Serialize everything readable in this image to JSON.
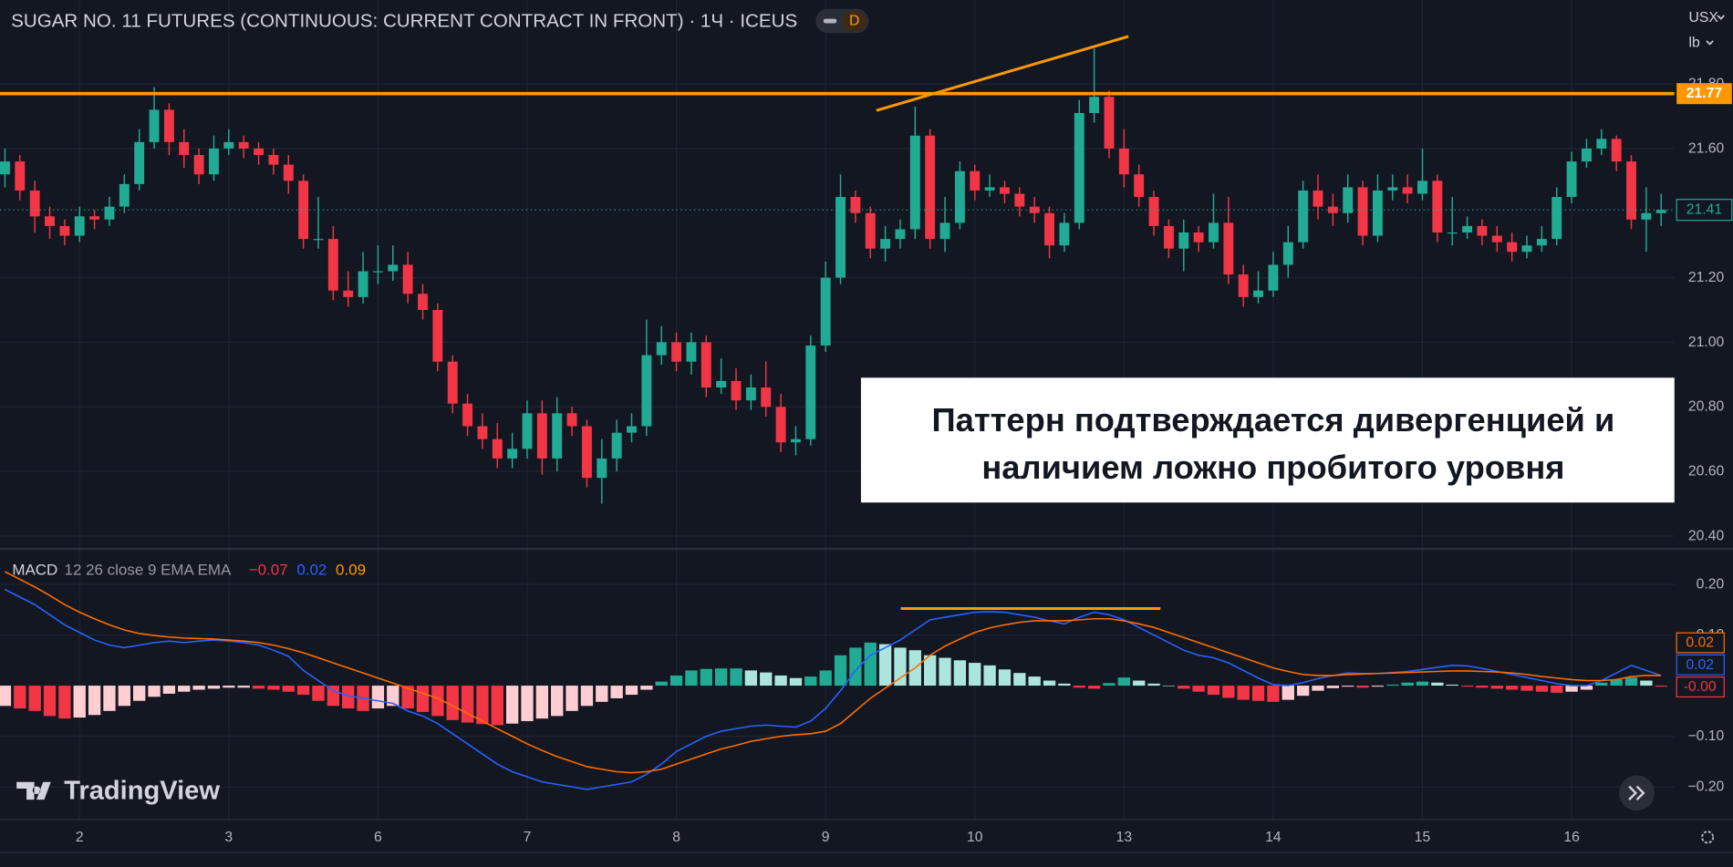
{
  "ui": {
    "currency": "USX",
    "unit": "lb",
    "badge": "D",
    "logo": "TradingView"
  },
  "chart_data": [
    {
      "type": "candlestick",
      "title": "SUGAR NO. 11 FUTURES (CONTINUOUS: CURRENT CONTRACT IN FRONT) · 1Ч · ICEUS",
      "categories": [
        null,
        null,
        null,
        null,
        null,
        "2",
        null,
        null,
        null,
        null,
        null,
        null,
        null,
        null,
        null,
        "3",
        null,
        null,
        null,
        null,
        null,
        null,
        null,
        null,
        null,
        "6",
        null,
        null,
        null,
        null,
        null,
        null,
        null,
        null,
        null,
        "7",
        null,
        null,
        null,
        null,
        null,
        null,
        null,
        null,
        null,
        "8",
        null,
        null,
        null,
        null,
        null,
        null,
        null,
        null,
        null,
        "9",
        null,
        null,
        null,
        null,
        null,
        null,
        null,
        null,
        null,
        "10",
        null,
        null,
        null,
        null,
        null,
        null,
        null,
        null,
        null,
        "13",
        null,
        null,
        null,
        null,
        null,
        null,
        null,
        null,
        null,
        "14",
        null,
        null,
        null,
        null,
        null,
        null,
        null,
        null,
        null,
        "15",
        null,
        null,
        null,
        null,
        null,
        null,
        null,
        null,
        null,
        "16",
        null,
        null,
        null,
        null,
        null,
        null
      ],
      "open": [
        21.52,
        21.56,
        21.47,
        21.39,
        21.36,
        21.33,
        21.39,
        21.38,
        21.42,
        21.49,
        21.62,
        21.72,
        21.62,
        21.58,
        21.52,
        21.6,
        21.62,
        21.6,
        21.58,
        21.55,
        21.5,
        21.32,
        21.32,
        21.16,
        21.14,
        21.22,
        21.22,
        21.24,
        21.15,
        21.1,
        20.94,
        20.81,
        20.74,
        20.7,
        20.64,
        20.67,
        20.78,
        20.64,
        20.78,
        20.74,
        20.58,
        20.64,
        20.72,
        20.74,
        20.96,
        21.0,
        20.94,
        21.0,
        20.86,
        20.88,
        20.82,
        20.86,
        20.8,
        20.69,
        20.7,
        20.99,
        21.2,
        21.45,
        21.4,
        21.29,
        21.32,
        21.35,
        21.64,
        21.32,
        21.37,
        21.53,
        21.47,
        21.48,
        21.46,
        21.42,
        21.4,
        21.3,
        21.37,
        21.71,
        21.76,
        21.6,
        21.52,
        21.45,
        21.36,
        21.29,
        21.34,
        21.31,
        21.37,
        21.21,
        21.14,
        21.16,
        21.24,
        21.31,
        21.47,
        21.42,
        21.4,
        21.48,
        21.33,
        21.47,
        21.48,
        21.46,
        21.5,
        21.34,
        21.34,
        21.36,
        21.33,
        21.31,
        21.28,
        21.3,
        21.32,
        21.45,
        21.56,
        21.6,
        21.63,
        21.56,
        21.38,
        21.4
      ],
      "high": [
        21.6,
        21.58,
        21.5,
        21.42,
        21.38,
        21.42,
        21.41,
        21.45,
        21.52,
        21.66,
        21.79,
        21.74,
        21.66,
        21.6,
        21.64,
        21.66,
        21.64,
        21.62,
        21.6,
        21.58,
        21.52,
        21.45,
        21.36,
        21.22,
        21.28,
        21.3,
        21.3,
        21.28,
        21.18,
        21.12,
        20.96,
        20.84,
        20.78,
        20.75,
        20.72,
        20.82,
        20.82,
        20.83,
        20.8,
        20.76,
        20.7,
        20.76,
        20.78,
        21.07,
        21.05,
        21.03,
        21.03,
        21.02,
        20.95,
        20.92,
        20.9,
        20.94,
        20.84,
        20.74,
        21.02,
        21.25,
        21.52,
        21.47,
        21.42,
        21.36,
        21.38,
        21.73,
        21.66,
        21.45,
        21.56,
        21.55,
        21.52,
        21.5,
        21.48,
        21.45,
        21.42,
        21.4,
        21.75,
        21.91,
        21.78,
        21.66,
        21.55,
        21.47,
        21.38,
        21.38,
        21.36,
        21.46,
        21.45,
        21.24,
        21.22,
        21.28,
        21.36,
        21.5,
        21.52,
        21.46,
        21.52,
        21.5,
        21.52,
        21.52,
        21.52,
        21.6,
        21.52,
        21.45,
        21.39,
        21.38,
        21.36,
        21.34,
        21.33,
        21.36,
        21.48,
        21.59,
        21.63,
        21.66,
        21.64,
        21.58,
        21.48,
        21.46
      ],
      "low": [
        21.48,
        21.44,
        21.34,
        21.32,
        21.3,
        21.31,
        21.35,
        21.36,
        21.4,
        21.47,
        21.6,
        21.58,
        21.54,
        21.49,
        21.5,
        21.58,
        21.57,
        21.55,
        21.52,
        21.46,
        21.29,
        21.29,
        21.13,
        21.11,
        21.12,
        21.18,
        21.19,
        21.12,
        21.07,
        20.91,
        20.78,
        20.71,
        20.67,
        20.61,
        20.61,
        20.64,
        20.59,
        20.6,
        20.71,
        20.55,
        20.5,
        20.6,
        20.69,
        20.71,
        20.93,
        20.91,
        20.9,
        20.83,
        20.84,
        20.79,
        20.79,
        20.77,
        20.66,
        20.65,
        20.68,
        20.97,
        21.18,
        21.37,
        21.26,
        21.25,
        21.29,
        21.32,
        21.29,
        21.28,
        21.35,
        21.44,
        21.45,
        21.43,
        21.39,
        21.37,
        21.26,
        21.28,
        21.35,
        21.68,
        21.57,
        21.48,
        21.42,
        21.33,
        21.26,
        21.22,
        21.28,
        21.29,
        21.18,
        21.11,
        21.12,
        21.14,
        21.2,
        21.29,
        21.38,
        21.36,
        21.37,
        21.3,
        21.31,
        21.44,
        21.43,
        21.44,
        21.31,
        21.3,
        21.32,
        21.3,
        21.28,
        21.25,
        21.26,
        21.28,
        21.3,
        21.43,
        21.54,
        21.58,
        21.53,
        21.35,
        21.28,
        21.36
      ],
      "close": [
        21.56,
        21.47,
        21.39,
        21.36,
        21.33,
        21.39,
        21.38,
        21.42,
        21.49,
        21.62,
        21.72,
        21.62,
        21.58,
        21.52,
        21.6,
        21.62,
        21.6,
        21.58,
        21.55,
        21.5,
        21.32,
        21.32,
        21.16,
        21.14,
        21.22,
        21.22,
        21.24,
        21.15,
        21.1,
        20.94,
        20.81,
        20.74,
        20.7,
        20.64,
        20.67,
        20.78,
        20.64,
        20.78,
        20.74,
        20.58,
        20.64,
        20.72,
        20.74,
        20.96,
        21.0,
        20.94,
        21.0,
        20.86,
        20.88,
        20.82,
        20.86,
        20.8,
        20.69,
        20.7,
        20.99,
        21.2,
        21.45,
        21.4,
        21.29,
        21.32,
        21.35,
        21.64,
        21.32,
        21.37,
        21.53,
        21.47,
        21.48,
        21.46,
        21.42,
        21.4,
        21.3,
        21.37,
        21.71,
        21.76,
        21.6,
        21.52,
        21.45,
        21.36,
        21.29,
        21.34,
        21.31,
        21.37,
        21.21,
        21.14,
        21.16,
        21.24,
        21.31,
        21.47,
        21.42,
        21.4,
        21.48,
        21.33,
        21.47,
        21.48,
        21.46,
        21.5,
        21.34,
        21.34,
        21.36,
        21.33,
        21.31,
        21.28,
        21.3,
        21.32,
        21.45,
        21.56,
        21.6,
        21.63,
        21.56,
        21.38,
        21.4,
        21.41
      ],
      "up_color": "#22ab94",
      "down_color": "#f23645",
      "ylim": [
        20.36,
        22.06
      ],
      "yticks": [
        {
          "value": 21.8,
          "label": "21.80"
        },
        {
          "value": 21.6,
          "label": "21.60"
        },
        {
          "value": 21.2,
          "label": "21.20"
        },
        {
          "value": 21,
          "label": "21.00"
        },
        {
          "value": 20.8,
          "label": "20.80"
        },
        {
          "value": 20.6,
          "label": "20.60"
        },
        {
          "value": 20.4,
          "label": "20.40"
        }
      ],
      "grid": true,
      "level": {
        "value": 21.77,
        "label": "21.77",
        "color": "#ff9800"
      },
      "annotation": [
        "Паттерн подтверждается дивергенцией и",
        "наличием ложно пробитого уровня"
      ]
    },
    {
      "type": "macd",
      "title": "MACD",
      "subtitle": "12 26 close 9 EMA EMA",
      "legend_values": [
        {
          "label": "−0.07",
          "color": "#f23645"
        },
        {
          "label": "0.02",
          "color": "#2962ff"
        },
        {
          "label": "0.09",
          "color": "#ff9800"
        }
      ],
      "histogram": {
        "values": [
          -0.04,
          -0.045,
          -0.05,
          -0.06,
          -0.065,
          -0.063,
          -0.058,
          -0.05,
          -0.04,
          -0.03,
          -0.022,
          -0.016,
          -0.012,
          -0.008,
          -0.006,
          -0.004,
          -0.004,
          -0.006,
          -0.008,
          -0.012,
          -0.018,
          -0.03,
          -0.04,
          -0.045,
          -0.05,
          -0.045,
          -0.04,
          -0.045,
          -0.052,
          -0.06,
          -0.068,
          -0.073,
          -0.076,
          -0.078,
          -0.075,
          -0.07,
          -0.065,
          -0.06,
          -0.05,
          -0.04,
          -0.032,
          -0.025,
          -0.018,
          -0.008,
          0.008,
          0.02,
          0.03,
          0.033,
          0.034,
          0.034,
          0.03,
          0.026,
          0.02,
          0.015,
          0.018,
          0.03,
          0.06,
          0.075,
          0.085,
          0.082,
          0.075,
          0.07,
          0.06,
          0.055,
          0.05,
          0.045,
          0.04,
          0.032,
          0.025,
          0.018,
          0.01,
          0.004,
          -0.004,
          -0.006,
          0.005,
          0.016,
          0.01,
          0.004,
          0,
          -0.006,
          -0.012,
          -0.018,
          -0.024,
          -0.028,
          -0.03,
          -0.032,
          -0.028,
          -0.02,
          -0.01,
          -0.005,
          -0.002,
          -0.004,
          -0.002,
          0.002,
          0.006,
          0.008,
          0.006,
          0.002,
          -0.002,
          -0.004,
          -0.006,
          -0.008,
          -0.01,
          -0.012,
          -0.014,
          -0.012,
          -0.008,
          0.006,
          0.012,
          0.016,
          0.01,
          -0.002
        ],
        "colors": [
          "#22ab94",
          "#ace5dc",
          "#f23645",
          "#ffcdd2"
        ],
        "last_value_label": "-0.00"
      },
      "series": [
        {
          "color": "#2962ff",
          "values": [
            0.19,
            0.175,
            0.16,
            0.14,
            0.12,
            0.105,
            0.09,
            0.08,
            0.075,
            0.08,
            0.085,
            0.088,
            0.085,
            0.088,
            0.09,
            0.088,
            0.085,
            0.08,
            0.07,
            0.058,
            0.03,
            0.01,
            -0.01,
            -0.02,
            -0.025,
            -0.03,
            -0.035,
            -0.05,
            -0.06,
            -0.075,
            -0.095,
            -0.115,
            -0.135,
            -0.155,
            -0.17,
            -0.18,
            -0.19,
            -0.195,
            -0.2,
            -0.205,
            -0.2,
            -0.195,
            -0.19,
            -0.175,
            -0.155,
            -0.13,
            -0.115,
            -0.1,
            -0.09,
            -0.085,
            -0.08,
            -0.078,
            -0.08,
            -0.082,
            -0.07,
            -0.045,
            -0.01,
            0.03,
            0.06,
            0.075,
            0.09,
            0.11,
            0.13,
            0.135,
            0.14,
            0.145,
            0.146,
            0.145,
            0.14,
            0.135,
            0.128,
            0.122,
            0.135,
            0.145,
            0.14,
            0.13,
            0.115,
            0.1,
            0.085,
            0.07,
            0.06,
            0.055,
            0.045,
            0.03,
            0.015,
            0.002,
            0,
            0.006,
            0.014,
            0.02,
            0.025,
            0.024,
            0.024,
            0.026,
            0.028,
            0.032,
            0.036,
            0.04,
            0.039,
            0.034,
            0.028,
            0.022,
            0.016,
            0.01,
            0.004,
            0,
            0,
            0.01,
            0.025,
            0.04,
            0.03,
            0.02
          ]
        },
        {
          "color": "#ff6d00",
          "values": [
            0.225,
            0.21,
            0.195,
            0.178,
            0.16,
            0.145,
            0.132,
            0.12,
            0.11,
            0.103,
            0.099,
            0.096,
            0.094,
            0.093,
            0.092,
            0.09,
            0.088,
            0.085,
            0.08,
            0.073,
            0.065,
            0.055,
            0.045,
            0.035,
            0.025,
            0.015,
            0.005,
            -0.005,
            -0.015,
            -0.025,
            -0.04,
            -0.055,
            -0.07,
            -0.085,
            -0.1,
            -0.115,
            -0.128,
            -0.14,
            -0.15,
            -0.16,
            -0.165,
            -0.17,
            -0.172,
            -0.17,
            -0.165,
            -0.155,
            -0.145,
            -0.135,
            -0.125,
            -0.118,
            -0.11,
            -0.105,
            -0.1,
            -0.097,
            -0.095,
            -0.09,
            -0.075,
            -0.05,
            -0.025,
            -0.005,
            0.015,
            0.035,
            0.06,
            0.078,
            0.092,
            0.105,
            0.114,
            0.12,
            0.125,
            0.128,
            0.128,
            0.128,
            0.13,
            0.132,
            0.132,
            0.128,
            0.122,
            0.115,
            0.105,
            0.095,
            0.085,
            0.075,
            0.065,
            0.055,
            0.045,
            0.035,
            0.028,
            0.022,
            0.02,
            0.02,
            0.022,
            0.023,
            0.024,
            0.025,
            0.026,
            0.027,
            0.028,
            0.029,
            0.029,
            0.028,
            0.027,
            0.025,
            0.022,
            0.018,
            0.015,
            0.012,
            0.01,
            0.01,
            0.012,
            0.018,
            0.02,
            0.02
          ]
        }
      ],
      "ylim": [
        -0.26,
        0.27
      ],
      "yticks": [
        {
          "value": 0.2,
          "label": "0.20"
        },
        {
          "value": 0.1,
          "label": "0.10"
        },
        {
          "value": -0.1,
          "label": "−0.10"
        },
        {
          "value": -0.2,
          "label": "−0.20"
        }
      ],
      "grid": true
    }
  ]
}
